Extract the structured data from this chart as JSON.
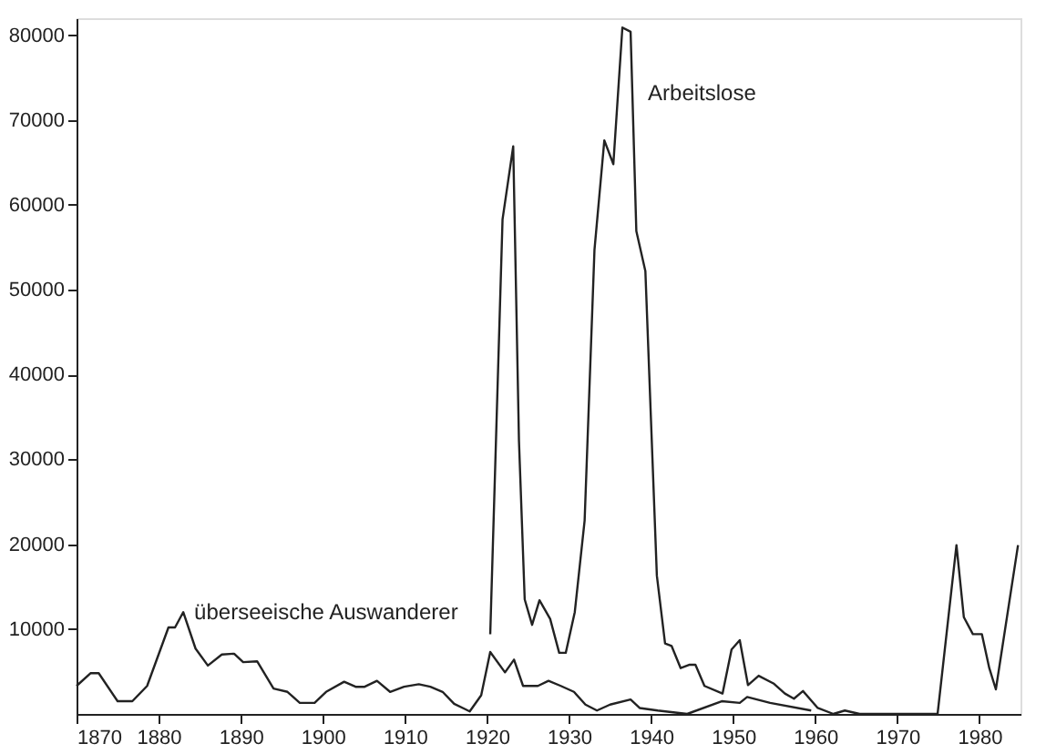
{
  "chart_data": {
    "type": "line",
    "series": [
      {
        "name": "überseeische Auswanderer",
        "color": "#222222",
        "x": [
          1870,
          1871.7,
          1872.7,
          1875,
          1876.8,
          1878.6,
          1881.2,
          1882,
          1883,
          1884.5,
          1886,
          1887.7,
          1889.2,
          1890.3,
          1892,
          1894,
          1895.7,
          1897.2,
          1899,
          1900.4,
          1902.6,
          1904,
          1905.1,
          1906.6,
          1908.2,
          1909.9,
          1911.7,
          1913.1,
          1914.6,
          1916,
          1917.9,
          1919.3,
          1920.4,
          1922.2,
          1923.3,
          1924.4,
          1926.2,
          1927.5,
          1929,
          1930.6,
          1932,
          1933.4,
          1935,
          1937.5,
          1938.6,
          1940.8,
          1944.4,
          1948.6,
          1950.8,
          1951.7,
          1954.5,
          1959.5
        ],
        "values": [
          3300,
          4800,
          4800,
          1500,
          1500,
          3300,
          10200,
          10200,
          12000,
          7700,
          5700,
          7000,
          7100,
          6100,
          6200,
          3000,
          2600,
          1300,
          1300,
          2600,
          3800,
          3200,
          3200,
          3900,
          2600,
          3200,
          3500,
          3200,
          2600,
          1200,
          300,
          2200,
          7300,
          4900,
          6400,
          3300,
          3300,
          3900,
          3300,
          2600,
          1100,
          400,
          1100,
          1700,
          700,
          400,
          0,
          1500,
          1300,
          2000,
          1300,
          400
        ]
      },
      {
        "name": "Arbeitslose",
        "color": "#222222",
        "x": [
          1920.4,
          1921.9,
          1923.2,
          1923.9,
          1924.6,
          1925.5,
          1926.4,
          1927.7,
          1928.8,
          1929.6,
          1930.7,
          1931.9,
          1933.1,
          1934.3,
          1935.4,
          1936.5,
          1937.5,
          1938.2,
          1939.3,
          1940.7,
          1941.7,
          1942.5,
          1943.6,
          1944.7,
          1945.4,
          1946.5,
          1948.7,
          1949.8,
          1950.8,
          1951.8,
          1953.1,
          1954.9,
          1956.3,
          1957.4,
          1958.5,
          1960.3,
          1962.2,
          1963.6,
          1965.4,
          1974.9,
          1977.2,
          1978.1,
          1979.2,
          1980.3,
          1981.2,
          1982,
          1984.7
        ],
        "values": [
          9400,
          58300,
          66900,
          32200,
          13500,
          10500,
          13400,
          11200,
          7200,
          7200,
          12000,
          22800,
          54700,
          67600,
          64800,
          80900,
          80400,
          56900,
          52200,
          16300,
          8300,
          8000,
          5400,
          5800,
          5800,
          3300,
          2400,
          7600,
          8700,
          3400,
          4500,
          3600,
          2400,
          1800,
          2700,
          700,
          0,
          400,
          0,
          0,
          19900,
          11400,
          9400,
          9400,
          5400,
          2900,
          19900
        ]
      }
    ],
    "xlim": [
      1870,
      1985
    ],
    "xticks": [
      1870,
      1880,
      1890,
      1900,
      1910,
      1920,
      1930,
      1940,
      1950,
      1960,
      1970,
      1980
    ],
    "ylim": [
      0,
      82000
    ],
    "yticks": [
      10000,
      20000,
      30000,
      40000,
      50000,
      60000,
      70000,
      80000
    ],
    "grid": false,
    "legend": false,
    "marker": "none",
    "line_style": "solid"
  }
}
